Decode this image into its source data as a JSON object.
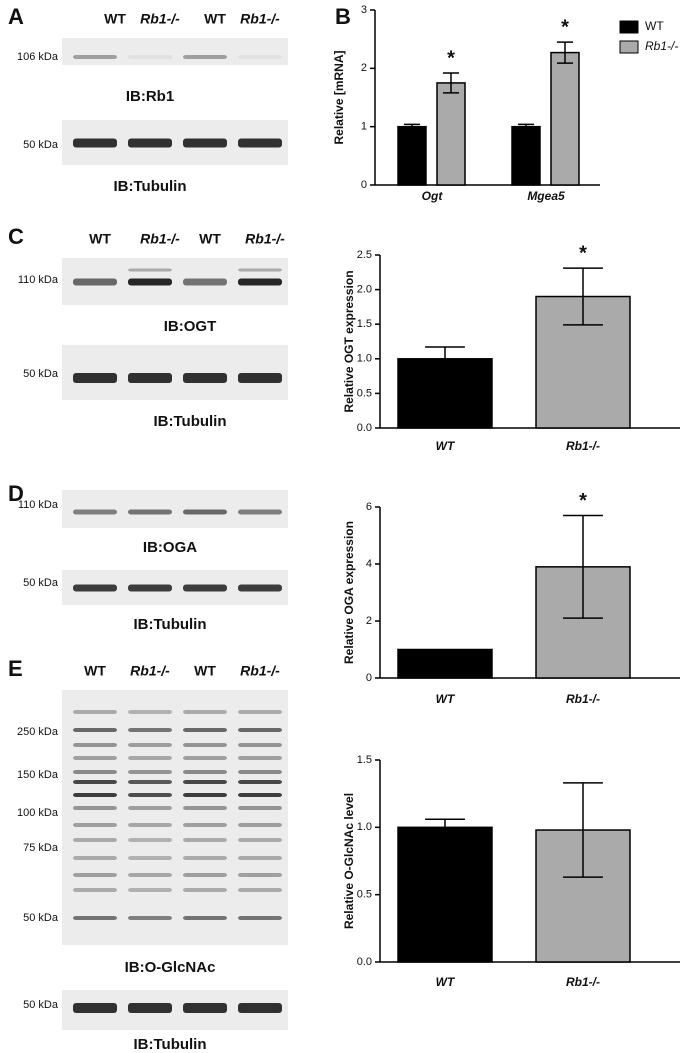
{
  "blots": [
    {
      "label": "A",
      "lanes": [
        "WT",
        "Rb1-/-",
        "WT",
        "Rb1-/-"
      ],
      "images": [
        {
          "markers": [
            "106 kDa"
          ],
          "caption": "IB:Rb1"
        },
        {
          "markers": [
            "50 kDa"
          ],
          "caption": "IB:Tubulin"
        }
      ]
    },
    {
      "label": "C",
      "lanes": [
        "WT",
        "Rb1-/-",
        "WT",
        "Rb1-/-"
      ],
      "images": [
        {
          "markers": [
            "110 kDa"
          ],
          "caption": "IB:OGT"
        },
        {
          "markers": [
            "50 kDa"
          ],
          "caption": "IB:Tubulin"
        }
      ]
    },
    {
      "label": "D",
      "lanes": [
        "WT",
        "Rb1-/-",
        "WT",
        "Rb1-/-"
      ],
      "images": [
        {
          "markers": [
            "110 kDa"
          ],
          "caption": "IB:OGA"
        },
        {
          "markers": [
            "50 kDa"
          ],
          "caption": "IB:Tubulin"
        }
      ]
    },
    {
      "label": "E",
      "lanes": [
        "WT",
        "Rb1-/-",
        "WT",
        "Rb1-/-"
      ],
      "images": [
        {
          "markers": [
            "250 kDa",
            "150 kDa",
            "100 kDa",
            "75 kDa",
            "50 kDa"
          ],
          "caption": "IB:O-GlcNAc"
        },
        {
          "markers": [
            "50 kDa"
          ],
          "caption": "IB:Tubulin"
        }
      ]
    }
  ],
  "chart_data": [
    {
      "type": "bar",
      "panel": "B",
      "ylabel": "Relative [mRNA]",
      "categories": [
        "Ogt",
        "Mgea5"
      ],
      "series": [
        {
          "name": "WT",
          "color": "#000000",
          "values": [
            1.0,
            1.0
          ],
          "errors": [
            0.04,
            0.04
          ]
        },
        {
          "name": "Rb1-/-",
          "color": "#aaaaaa",
          "values": [
            1.75,
            2.27
          ],
          "errors": [
            0.17,
            0.18
          ],
          "annotations": [
            "*",
            "*"
          ]
        }
      ],
      "ylim": [
        0,
        3
      ],
      "yticks": [
        0,
        1,
        2,
        3
      ],
      "legend": "right"
    },
    {
      "type": "bar",
      "ylabel": "Relative OGT expression",
      "categories": [
        "WT",
        "Rb1-/-"
      ],
      "values": [
        1.0,
        1.9
      ],
      "errors": [
        0.17,
        0.41
      ],
      "colors": [
        "#000000",
        "#aaaaaa"
      ],
      "annotations": [
        null,
        "*"
      ],
      "ylim": [
        0,
        2.5
      ],
      "yticks": [
        {
          "value": 0,
          "label": "0.0"
        },
        0.5,
        {
          "value": 1,
          "label": "1.0"
        },
        1.5,
        {
          "value": 2,
          "label": "2.0"
        },
        2.5
      ]
    },
    {
      "type": "bar",
      "ylabel": "Relative OGA expression",
      "categories": [
        "WT",
        "Rb1-/-"
      ],
      "values": [
        1.0,
        3.9
      ],
      "errors": [
        0,
        1.8
      ],
      "colors": [
        "#000000",
        "#aaaaaa"
      ],
      "annotations": [
        null,
        "*"
      ],
      "ylim": [
        0,
        6
      ],
      "yticks": [
        0,
        2,
        4,
        6
      ]
    },
    {
      "type": "bar",
      "ylabel": "Relative O-GlcNAc level",
      "categories": [
        "WT",
        "Rb1-/-"
      ],
      "values": [
        1.0,
        0.98
      ],
      "errors": [
        0.06,
        0.35
      ],
      "colors": [
        "#000000",
        "#aaaaaa"
      ],
      "ylim": [
        0,
        1.5
      ],
      "yticks": [
        {
          "value": 0,
          "label": "0.0"
        },
        0.5,
        {
          "value": 1,
          "label": "1.0"
        },
        1.5
      ]
    }
  ]
}
